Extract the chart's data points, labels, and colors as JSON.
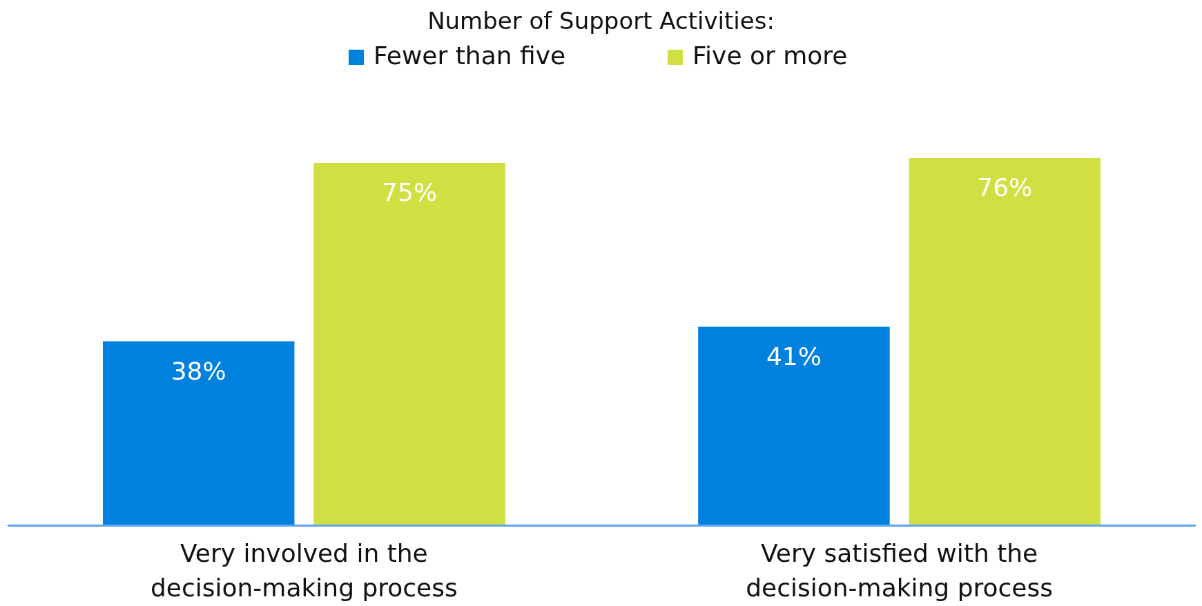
{
  "chart_data": {
    "type": "bar",
    "legend_title": "Number of Support Activities:",
    "categories": [
      "Very involved in the decision-making process",
      "Very satisfied with the decision-making process"
    ],
    "series": [
      {
        "name": "Fewer than five",
        "color": "#0081de",
        "values": [
          38,
          41
        ],
        "value_labels": [
          "38%",
          "41%"
        ]
      },
      {
        "name": "Five or more",
        "color": "#d0e043",
        "values": [
          75,
          76
        ],
        "value_labels": [
          "75%",
          "76%"
        ]
      }
    ],
    "legend": "top"
  }
}
